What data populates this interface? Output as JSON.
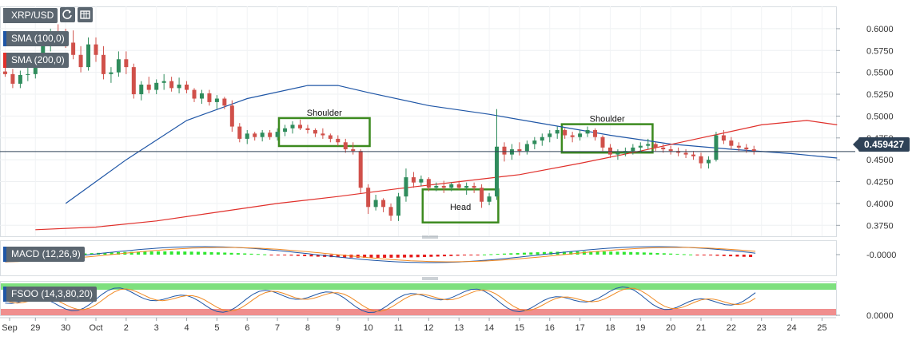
{
  "chart_data": {
    "type": "candlestick",
    "symbol": "XRP/USD",
    "indicators": [
      {
        "label": "SMA (100,0)",
        "color": "#1f56a6"
      },
      {
        "label": "SMA (200,0)",
        "color": "#e0302b"
      }
    ],
    "current_price": "0.459427",
    "y_axis": {
      "ticks": [
        "0.6000",
        "0.5750",
        "0.5500",
        "0.5250",
        "0.5000",
        "0.4750",
        "0.4500",
        "0.4250",
        "0.4000",
        "0.3750"
      ],
      "range": [
        0.3625,
        0.6255
      ]
    },
    "x_axis": {
      "ticks": [
        "Sep",
        "29",
        "30",
        "Oct",
        "2",
        "3",
        "4",
        "5",
        "6",
        "7",
        "8",
        "9",
        "10",
        "11",
        "12",
        "13",
        "14",
        "15",
        "16",
        "17",
        "18",
        "19",
        "20",
        "21",
        "22",
        "23",
        "24",
        "25"
      ]
    },
    "annotations": [
      {
        "label": "Shoulder",
        "box": [
          6.05,
          9.05,
          0.4657,
          0.4977
        ]
      },
      {
        "label": "Head",
        "box": [
          10.8,
          13.3,
          0.3783,
          0.4161
        ]
      },
      {
        "label": "Shoulder",
        "box": [
          15.4,
          18.4,
          0.4582,
          0.4907
        ]
      }
    ],
    "sma100": [
      [
        -1,
        0.4
      ],
      [
        1,
        0.45
      ],
      [
        3,
        0.495
      ],
      [
        5,
        0.52
      ],
      [
        7,
        0.535
      ],
      [
        8,
        0.535
      ],
      [
        9,
        0.527
      ],
      [
        11,
        0.512
      ],
      [
        13,
        0.502
      ],
      [
        15,
        0.49
      ],
      [
        17,
        0.478
      ],
      [
        19,
        0.468
      ],
      [
        21,
        0.462
      ],
      [
        23,
        0.457
      ],
      [
        24.5,
        0.452
      ]
    ],
    "sma200": [
      [
        -2,
        0.37
      ],
      [
        0,
        0.373
      ],
      [
        2,
        0.38
      ],
      [
        4,
        0.39
      ],
      [
        6,
        0.4
      ],
      [
        8,
        0.408
      ],
      [
        10,
        0.417
      ],
      [
        12,
        0.425
      ],
      [
        14,
        0.433
      ],
      [
        16,
        0.446
      ],
      [
        18,
        0.46
      ],
      [
        20,
        0.475
      ],
      [
        22,
        0.49
      ],
      [
        23.5,
        0.495
      ],
      [
        24.5,
        0.49
      ]
    ],
    "candles": [
      [
        -3.0,
        0.551,
        0.558,
        0.545,
        0.548
      ],
      [
        -2.75,
        0.548,
        0.554,
        0.532,
        0.537
      ],
      [
        -2.5,
        0.537,
        0.552,
        0.532,
        0.547
      ],
      [
        -2.25,
        0.547,
        0.56,
        0.54,
        0.548
      ],
      [
        -2.0,
        0.548,
        0.566,
        0.543,
        0.56
      ],
      [
        -1.75,
        0.56,
        0.585,
        0.555,
        0.58
      ],
      [
        -1.5,
        0.58,
        0.6,
        0.574,
        0.594
      ],
      [
        -1.25,
        0.594,
        0.605,
        0.585,
        0.592
      ],
      [
        -1.0,
        0.592,
        0.6,
        0.578,
        0.584
      ],
      [
        -0.75,
        0.584,
        0.598,
        0.565,
        0.57
      ],
      [
        -0.5,
        0.57,
        0.58,
        0.55,
        0.556
      ],
      [
        -0.25,
        0.556,
        0.59,
        0.552,
        0.582
      ],
      [
        0.0,
        0.582,
        0.59,
        0.562,
        0.57
      ],
      [
        0.25,
        0.57,
        0.58,
        0.542,
        0.548
      ],
      [
        0.5,
        0.548,
        0.556,
        0.538,
        0.55
      ],
      [
        0.75,
        0.55,
        0.574,
        0.545,
        0.565
      ],
      [
        1.0,
        0.565,
        0.574,
        0.548,
        0.556
      ],
      [
        1.25,
        0.556,
        0.56,
        0.52,
        0.525
      ],
      [
        1.5,
        0.525,
        0.54,
        0.518,
        0.536
      ],
      [
        1.75,
        0.536,
        0.545,
        0.526,
        0.53
      ],
      [
        2.0,
        0.53,
        0.542,
        0.525,
        0.538
      ],
      [
        2.25,
        0.538,
        0.548,
        0.53,
        0.54
      ],
      [
        2.5,
        0.54,
        0.545,
        0.528,
        0.532
      ],
      [
        2.75,
        0.532,
        0.544,
        0.526,
        0.536
      ],
      [
        3.0,
        0.536,
        0.54,
        0.526,
        0.53
      ],
      [
        3.25,
        0.53,
        0.532,
        0.516,
        0.52
      ],
      [
        3.5,
        0.52,
        0.53,
        0.514,
        0.526
      ],
      [
        3.75,
        0.526,
        0.53,
        0.512,
        0.516
      ],
      [
        4.0,
        0.516,
        0.524,
        0.508,
        0.52
      ],
      [
        4.25,
        0.52,
        0.522,
        0.508,
        0.512
      ],
      [
        4.5,
        0.512,
        0.518,
        0.482,
        0.488
      ],
      [
        4.75,
        0.488,
        0.492,
        0.47,
        0.474
      ],
      [
        5.0,
        0.474,
        0.484,
        0.468,
        0.48
      ],
      [
        5.25,
        0.48,
        0.482,
        0.472,
        0.476
      ],
      [
        5.5,
        0.476,
        0.484,
        0.471,
        0.481
      ],
      [
        5.75,
        0.481,
        0.484,
        0.473,
        0.476
      ],
      [
        6.0,
        0.476,
        0.486,
        0.472,
        0.482
      ],
      [
        6.25,
        0.482,
        0.49,
        0.477,
        0.486
      ],
      [
        6.5,
        0.486,
        0.494,
        0.48,
        0.49
      ],
      [
        6.75,
        0.49,
        0.496,
        0.484,
        0.486
      ],
      [
        7.0,
        0.486,
        0.49,
        0.48,
        0.484
      ],
      [
        7.25,
        0.484,
        0.486,
        0.476,
        0.48
      ],
      [
        7.5,
        0.48,
        0.486,
        0.474,
        0.478
      ],
      [
        7.75,
        0.478,
        0.48,
        0.47,
        0.474
      ],
      [
        8.0,
        0.474,
        0.478,
        0.466,
        0.47
      ],
      [
        8.25,
        0.47,
        0.474,
        0.458,
        0.462
      ],
      [
        8.5,
        0.462,
        0.47,
        0.456,
        0.46
      ],
      [
        8.75,
        0.46,
        0.462,
        0.412,
        0.418
      ],
      [
        9.0,
        0.418,
        0.422,
        0.388,
        0.396
      ],
      [
        9.25,
        0.396,
        0.41,
        0.392,
        0.404
      ],
      [
        9.5,
        0.404,
        0.406,
        0.39,
        0.396
      ],
      [
        9.75,
        0.396,
        0.4,
        0.38,
        0.386
      ],
      [
        10.0,
        0.386,
        0.412,
        0.38,
        0.408
      ],
      [
        10.25,
        0.408,
        0.44,
        0.402,
        0.43
      ],
      [
        10.5,
        0.43,
        0.436,
        0.418,
        0.424
      ],
      [
        10.75,
        0.424,
        0.432,
        0.42,
        0.428
      ],
      [
        11.0,
        0.428,
        0.43,
        0.414,
        0.418
      ],
      [
        11.25,
        0.418,
        0.424,
        0.414,
        0.42
      ],
      [
        11.5,
        0.42,
        0.426,
        0.412,
        0.418
      ],
      [
        11.75,
        0.418,
        0.424,
        0.414,
        0.422
      ],
      [
        12.0,
        0.422,
        0.426,
        0.416,
        0.418
      ],
      [
        12.25,
        0.418,
        0.424,
        0.41,
        0.42
      ],
      [
        12.5,
        0.42,
        0.424,
        0.412,
        0.418
      ],
      [
        12.75,
        0.418,
        0.422,
        0.395,
        0.402
      ],
      [
        13.0,
        0.402,
        0.412,
        0.398,
        0.408
      ],
      [
        13.25,
        0.408,
        0.508,
        0.404,
        0.465
      ],
      [
        13.5,
        0.465,
        0.47,
        0.448,
        0.456
      ],
      [
        13.75,
        0.456,
        0.468,
        0.45,
        0.462
      ],
      [
        14.0,
        0.462,
        0.47,
        0.455,
        0.46
      ],
      [
        14.25,
        0.46,
        0.472,
        0.456,
        0.468
      ],
      [
        14.5,
        0.468,
        0.476,
        0.462,
        0.472
      ],
      [
        14.75,
        0.472,
        0.48,
        0.466,
        0.476
      ],
      [
        15.0,
        0.476,
        0.484,
        0.47,
        0.48
      ],
      [
        15.25,
        0.48,
        0.488,
        0.474,
        0.484
      ],
      [
        15.5,
        0.484,
        0.486,
        0.474,
        0.478
      ],
      [
        15.75,
        0.478,
        0.482,
        0.47,
        0.476
      ],
      [
        16.0,
        0.476,
        0.484,
        0.472,
        0.48
      ],
      [
        16.25,
        0.48,
        0.488,
        0.476,
        0.484
      ],
      [
        16.5,
        0.484,
        0.486,
        0.472,
        0.476
      ],
      [
        16.75,
        0.476,
        0.478,
        0.46,
        0.464
      ],
      [
        17.0,
        0.464,
        0.468,
        0.452,
        0.456
      ],
      [
        17.25,
        0.456,
        0.462,
        0.45,
        0.458
      ],
      [
        17.5,
        0.458,
        0.464,
        0.454,
        0.46
      ],
      [
        17.75,
        0.46,
        0.468,
        0.456,
        0.464
      ],
      [
        18.0,
        0.464,
        0.47,
        0.458,
        0.466
      ],
      [
        18.25,
        0.466,
        0.474,
        0.462,
        0.468
      ],
      [
        18.5,
        0.468,
        0.47,
        0.46,
        0.464
      ],
      [
        18.75,
        0.464,
        0.468,
        0.458,
        0.462
      ],
      [
        19.0,
        0.462,
        0.466,
        0.456,
        0.46
      ],
      [
        19.25,
        0.46,
        0.464,
        0.454,
        0.458
      ],
      [
        19.5,
        0.458,
        0.462,
        0.452,
        0.456
      ],
      [
        19.75,
        0.456,
        0.46,
        0.45,
        0.454
      ],
      [
        20.0,
        0.454,
        0.458,
        0.44,
        0.446
      ],
      [
        20.25,
        0.446,
        0.454,
        0.44,
        0.45
      ],
      [
        20.5,
        0.45,
        0.482,
        0.448,
        0.478
      ],
      [
        20.75,
        0.478,
        0.484,
        0.468,
        0.472
      ],
      [
        21.0,
        0.472,
        0.476,
        0.462,
        0.466
      ],
      [
        21.25,
        0.466,
        0.47,
        0.46,
        0.464
      ],
      [
        21.5,
        0.464,
        0.468,
        0.458,
        0.462
      ],
      [
        21.75,
        0.462,
        0.466,
        0.456,
        0.46
      ]
    ],
    "panes": [
      {
        "label": "MACD (12,26,9)",
        "axis_tick": "-0.0000",
        "histogram_colors": {
          "positive": "#2ee62e",
          "negative": "#e51c1c"
        }
      },
      {
        "label": "FSOO (14,3,80,20)",
        "axis_tick": "0.0000",
        "overbought": 80,
        "oversold": 20
      }
    ]
  }
}
